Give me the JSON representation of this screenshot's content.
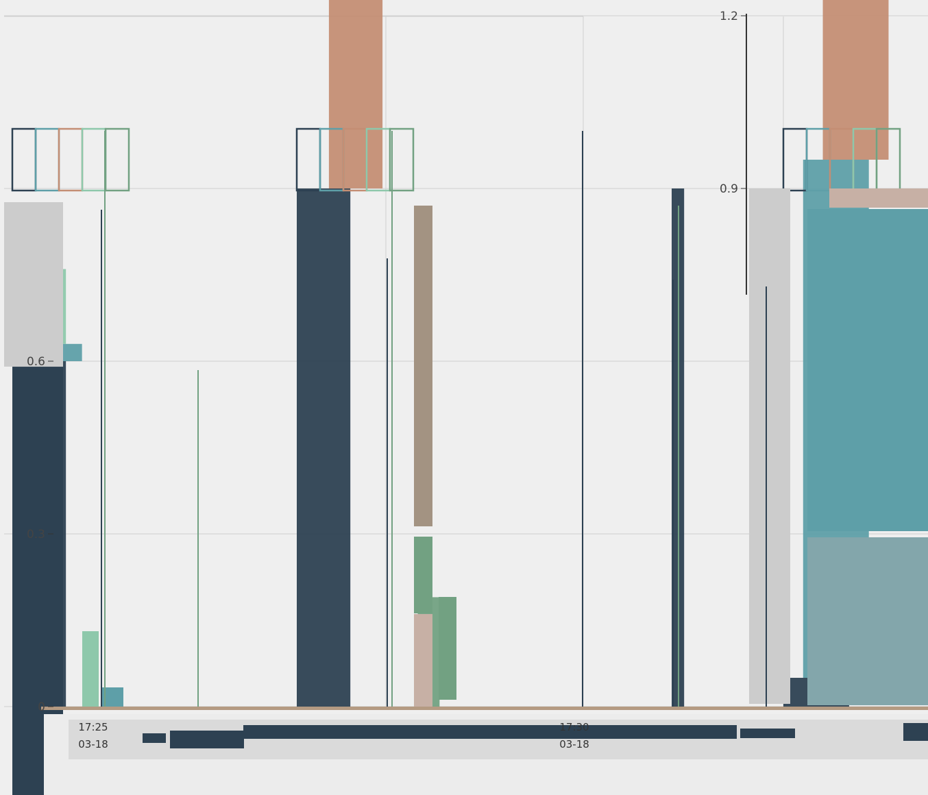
{
  "chart_data": {
    "type": "bar",
    "title": "",
    "xlabel": "",
    "ylabel": "",
    "ylim": [
      0,
      1.2
    ],
    "y_ticks": [
      "0",
      "0.3",
      "0.6",
      "0.9",
      "1.2"
    ],
    "grid": true,
    "x_ticks": [
      {
        "time": "17:25",
        "date": "03-18"
      },
      {
        "time": "17:30",
        "date": "03-18"
      }
    ],
    "series": [
      {
        "color": "#2d4152",
        "values": [
          0.6,
          0.9,
          0.0,
          0.9,
          0.05
        ]
      },
      {
        "color": "#5e9fa8",
        "values": [
          0.03,
          0.0,
          0.0,
          0.0,
          0.9
        ]
      },
      {
        "color": "#c48e74",
        "values": [
          0.0,
          0.9,
          0.0,
          0.0,
          0.9
        ]
      },
      {
        "color": "#8ec8ab",
        "values": [
          0.13,
          0.0,
          0.0,
          0.0,
          0.0
        ]
      },
      {
        "color": "#72a182",
        "values": [
          0.0,
          0.3,
          0.19,
          0.0,
          0.0
        ]
      },
      {
        "color": "#a39382",
        "values": [
          0.0,
          0.55,
          0.0,
          0.0,
          0.0
        ]
      },
      {
        "color": "#83a6ab",
        "values": [
          0.0,
          0.0,
          0.0,
          0.0,
          0.3
        ]
      }
    ]
  },
  "colors": {
    "background": "#efefef",
    "grid": "#cfcfcf",
    "axis": "#333333",
    "navy": "#2d4152",
    "teal": "#5e9fa8",
    "salmon": "#c48e74",
    "mint": "#8ec8ab",
    "green": "#72a182",
    "taupe": "#a39382",
    "rose": "#c7b0a5",
    "grey_block": "#cccccc",
    "slate": "#83a6ab"
  }
}
